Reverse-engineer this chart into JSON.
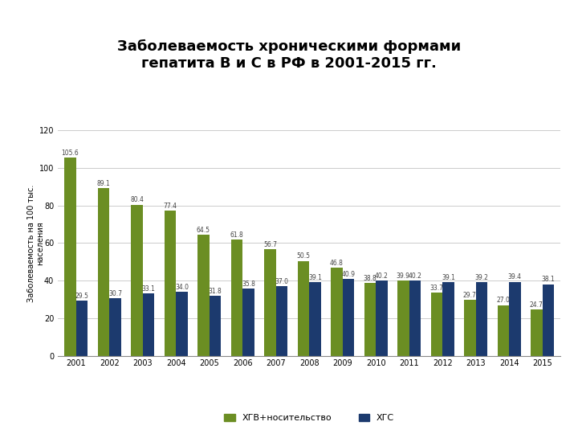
{
  "title": "Заболеваемость хроническими формами\nгепатита В и С в РФ в 2001-2015 гг.",
  "years": [
    2001,
    2002,
    2003,
    2004,
    2005,
    2006,
    2007,
    2008,
    2009,
    2010,
    2011,
    2012,
    2013,
    2014,
    2015
  ],
  "hgb_values": [
    105.6,
    89.1,
    80.4,
    77.4,
    64.5,
    61.8,
    56.7,
    50.5,
    46.8,
    38.8,
    39.9,
    33.7,
    29.7,
    27.0,
    24.7
  ],
  "hgs_values": [
    29.5,
    30.7,
    33.1,
    34.0,
    31.8,
    35.8,
    37.0,
    39.1,
    40.9,
    40.2,
    40.2,
    39.1,
    39.2,
    39.4,
    38.1
  ],
  "hgb_color": "#6b8e23",
  "hgs_color": "#1c3a6e",
  "ylabel": "Заболеваемость на 100 тыс.\nнаселения",
  "ylim": [
    0,
    120
  ],
  "yticks": [
    0,
    20,
    40,
    60,
    80,
    100,
    120
  ],
  "legend_hgb": "ХГВ+носительство",
  "legend_hgs": "ХГС",
  "bar_width": 0.35,
  "label_fontsize": 5.5,
  "title_fontsize": 13,
  "ylabel_fontsize": 7,
  "tick_fontsize": 7,
  "bg_color": "#ffffff"
}
